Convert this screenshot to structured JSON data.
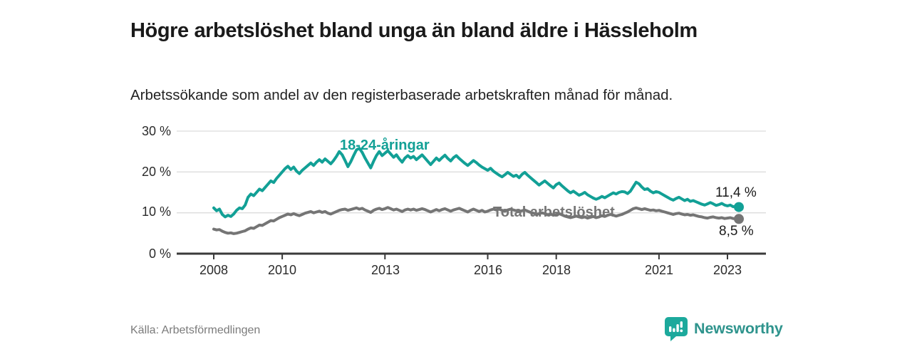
{
  "header": {
    "title": "Högre arbetslöshet bland unga än bland äldre i Hässleholm",
    "subtitle": "Arbetssökande som andel av den registerbaserade arbetskraften månad för månad."
  },
  "footer": {
    "source": "Källa: Arbetsförmedlingen",
    "brand": "Newsworthy"
  },
  "colors": {
    "young_series": "#12a096",
    "total_series": "#757575",
    "grid": "#dcdcdc",
    "axis": "#3a3a3a",
    "brand_teal": "#2f948d",
    "brand_icon": "#1ca99c",
    "title_text": "#1a1a1a"
  },
  "chart_data": {
    "type": "line",
    "title": "Högre arbetslöshet bland unga än bland äldre i Hässleholm",
    "subtitle": "Arbetssökande som andel av den registerbaserade arbetskraften månad för månad.",
    "x_unit": "month",
    "x_start_year": 2008,
    "x_end": "2023-05",
    "x_tick_years": [
      2008,
      2010,
      2013,
      2016,
      2018,
      2021,
      2023
    ],
    "x_tick_labels": [
      "2008",
      "2010",
      "2013",
      "2016",
      "2018",
      "2021",
      "2023"
    ],
    "y_tick_values": [
      30,
      20,
      10,
      0
    ],
    "y_tick_labels": [
      "30 %",
      "20 %",
      "10 %",
      "0 %"
    ],
    "ylim": [
      0,
      30
    ],
    "grid": true,
    "legend_position": "inline-labels",
    "series": [
      {
        "name": "18-24-åringar",
        "color": "#12a096",
        "end_label": "11,4 %",
        "end_value": 11.4,
        "values": [
          11.2,
          10.5,
          10.9,
          9.6,
          9.0,
          9.4,
          9.1,
          9.7,
          10.6,
          11.2,
          11.0,
          11.9,
          13.8,
          14.6,
          14.2,
          15.0,
          15.8,
          15.4,
          16.2,
          17.0,
          17.8,
          17.4,
          18.4,
          19.2,
          20.0,
          20.8,
          21.4,
          20.6,
          21.2,
          20.2,
          19.6,
          20.4,
          21.0,
          21.6,
          22.2,
          21.6,
          22.4,
          23.0,
          22.4,
          23.2,
          22.6,
          22.0,
          22.8,
          23.8,
          25.0,
          24.2,
          22.8,
          21.3,
          22.5,
          24.0,
          25.4,
          25.8,
          24.8,
          23.4,
          22.2,
          21.0,
          22.6,
          24.0,
          25.0,
          24.0,
          24.6,
          25.2,
          24.4,
          23.6,
          24.2,
          23.2,
          22.4,
          23.4,
          24.0,
          23.4,
          23.8,
          23.0,
          23.6,
          24.2,
          23.4,
          22.6,
          21.8,
          22.6,
          23.4,
          22.8,
          23.5,
          24.1,
          23.3,
          22.7,
          23.5,
          24.0,
          23.3,
          22.7,
          22.1,
          21.6,
          22.2,
          22.8,
          22.3,
          21.7,
          21.2,
          20.8,
          20.4,
          20.9,
          20.2,
          19.7,
          19.2,
          18.8,
          19.3,
          19.9,
          19.4,
          18.9,
          19.2,
          18.6,
          19.4,
          19.9,
          19.2,
          18.6,
          18.0,
          17.4,
          16.8,
          17.3,
          17.8,
          17.2,
          16.6,
          16.1,
          16.9,
          17.3,
          16.6,
          16.0,
          15.4,
          14.9,
          15.3,
          14.8,
          14.3,
          14.6,
          15.0,
          14.4,
          14.0,
          13.6,
          13.3,
          13.6,
          14.0,
          13.7,
          14.1,
          14.5,
          14.9,
          14.6,
          15.0,
          15.2,
          15.1,
          14.7,
          15.3,
          16.4,
          17.5,
          17.1,
          16.3,
          15.7,
          15.9,
          15.3,
          14.9,
          15.2,
          15.0,
          14.6,
          14.2,
          13.8,
          13.4,
          13.1,
          13.5,
          13.8,
          13.4,
          13.0,
          13.3,
          12.8,
          13.0,
          12.7,
          12.4,
          12.1,
          11.9,
          12.2,
          12.5,
          12.2,
          11.8,
          12.0,
          12.3,
          11.9,
          11.7,
          11.9,
          11.5,
          11.6,
          11.4
        ]
      },
      {
        "name": "Total arbetslöshet",
        "color": "#757575",
        "end_label": "8,5 %",
        "end_value": 8.5,
        "values": [
          6.0,
          5.8,
          5.9,
          5.5,
          5.2,
          5.0,
          5.1,
          4.9,
          5.0,
          5.2,
          5.4,
          5.6,
          6.0,
          6.3,
          6.2,
          6.6,
          7.0,
          6.9,
          7.3,
          7.7,
          8.1,
          8.0,
          8.4,
          8.8,
          9.1,
          9.4,
          9.7,
          9.5,
          9.8,
          9.5,
          9.3,
          9.6,
          9.9,
          10.1,
          10.3,
          10.0,
          10.2,
          10.4,
          10.1,
          10.3,
          9.9,
          9.7,
          10.0,
          10.3,
          10.6,
          10.8,
          10.9,
          10.6,
          10.8,
          11.0,
          11.2,
          10.9,
          11.1,
          10.7,
          10.4,
          10.1,
          10.6,
          10.9,
          11.1,
          10.8,
          11.0,
          11.3,
          11.0,
          10.7,
          10.9,
          10.6,
          10.3,
          10.7,
          10.9,
          10.7,
          10.9,
          10.6,
          10.8,
          11.0,
          10.8,
          10.5,
          10.2,
          10.5,
          10.8,
          10.5,
          10.8,
          11.0,
          10.7,
          10.4,
          10.7,
          10.9,
          11.1,
          10.8,
          10.5,
          10.2,
          10.6,
          10.9,
          10.6,
          10.3,
          10.6,
          10.2,
          10.4,
          10.7,
          10.9,
          10.7,
          10.9,
          10.6,
          10.4,
          10.7,
          10.9,
          10.7,
          10.5,
          10.3,
          10.5,
          10.7,
          10.4,
          10.1,
          9.9,
          9.6,
          9.8,
          10.0,
          9.8,
          9.5,
          9.7,
          9.4,
          9.6,
          9.8,
          9.5,
          9.2,
          9.0,
          8.8,
          9.0,
          9.2,
          9.0,
          8.8,
          9.0,
          8.7,
          8.9,
          9.1,
          8.8,
          9.0,
          9.3,
          9.1,
          9.4,
          9.6,
          9.4,
          9.2,
          9.4,
          9.6,
          9.9,
          10.2,
          10.6,
          11.0,
          11.2,
          11.0,
          10.8,
          11.0,
          10.8,
          10.6,
          10.7,
          10.5,
          10.6,
          10.4,
          10.2,
          10.0,
          9.8,
          9.6,
          9.8,
          9.9,
          9.7,
          9.5,
          9.6,
          9.4,
          9.5,
          9.3,
          9.1,
          9.0,
          8.8,
          8.7,
          8.9,
          9.0,
          8.8,
          8.7,
          8.8,
          8.6,
          8.7,
          8.8,
          8.6,
          8.6,
          8.5
        ]
      }
    ]
  }
}
